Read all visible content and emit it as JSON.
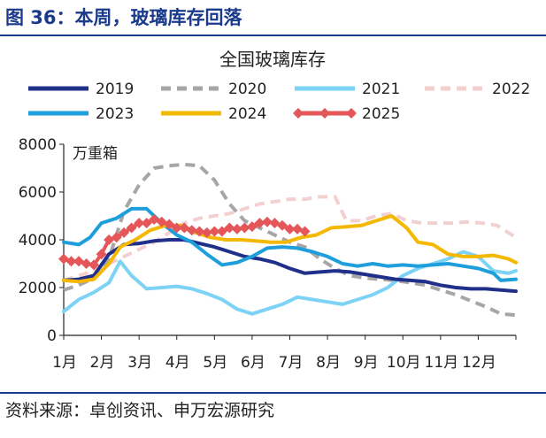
{
  "header": {
    "figure_title": "图 36：本周，玻璃库存回落"
  },
  "footer": {
    "source": "资料来源：卓创资讯、申万宏源研究"
  },
  "chart_data": {
    "type": "line",
    "title": "全国玻璃库存",
    "unit_label": "万重箱",
    "ylim": [
      0,
      8000
    ],
    "yticks": [
      0,
      2000,
      4000,
      6000,
      8000
    ],
    "xlim": [
      1,
      13
    ],
    "xticks": [
      "1月",
      "2月",
      "3月",
      "4月",
      "5月",
      "6月",
      "7月",
      "8月",
      "9月",
      "10月",
      "11月",
      "12月"
    ],
    "legend_position": "top",
    "grid": false,
    "series": [
      {
        "name": "2019",
        "color": "#1f2f8a",
        "style": "solid",
        "points": [
          [
            1,
            2300
          ],
          [
            1.4,
            2350
          ],
          [
            1.8,
            2500
          ],
          [
            2.2,
            3400
          ],
          [
            2.6,
            3800
          ],
          [
            3,
            3850
          ],
          [
            3.4,
            3950
          ],
          [
            3.8,
            4000
          ],
          [
            4.2,
            4000
          ],
          [
            4.6,
            3850
          ],
          [
            5,
            3700
          ],
          [
            5.4,
            3500
          ],
          [
            5.8,
            3300
          ],
          [
            6.2,
            3200
          ],
          [
            6.6,
            3050
          ],
          [
            7,
            2800
          ],
          [
            7.4,
            2600
          ],
          [
            7.8,
            2650
          ],
          [
            8.2,
            2700
          ],
          [
            8.6,
            2650
          ],
          [
            9,
            2550
          ],
          [
            9.4,
            2450
          ],
          [
            9.8,
            2350
          ],
          [
            10.2,
            2300
          ],
          [
            10.6,
            2250
          ],
          [
            11,
            2100
          ],
          [
            11.4,
            2000
          ],
          [
            11.8,
            1950
          ],
          [
            12.2,
            1950
          ],
          [
            12.6,
            1900
          ],
          [
            13,
            1850
          ]
        ]
      },
      {
        "name": "2020",
        "color": "#a6a6a6",
        "style": "dashed",
        "points": [
          [
            1,
            1900
          ],
          [
            1.4,
            2100
          ],
          [
            1.8,
            2400
          ],
          [
            2.2,
            3200
          ],
          [
            2.6,
            5200
          ],
          [
            3,
            6300
          ],
          [
            3.4,
            7000
          ],
          [
            3.8,
            7100
          ],
          [
            4.2,
            7150
          ],
          [
            4.6,
            7100
          ],
          [
            5,
            6500
          ],
          [
            5.4,
            5500
          ],
          [
            5.8,
            4800
          ],
          [
            6.2,
            4500
          ],
          [
            6.6,
            4200
          ],
          [
            7,
            3900
          ],
          [
            7.4,
            3700
          ],
          [
            7.8,
            3200
          ],
          [
            8.2,
            2800
          ],
          [
            8.6,
            2500
          ],
          [
            9,
            2400
          ],
          [
            9.4,
            2350
          ],
          [
            9.8,
            2300
          ],
          [
            10.2,
            2200
          ],
          [
            10.6,
            2100
          ],
          [
            11,
            1900
          ],
          [
            11.4,
            1700
          ],
          [
            11.8,
            1450
          ],
          [
            12.2,
            1200
          ],
          [
            12.6,
            900
          ],
          [
            13,
            850
          ]
        ]
      },
      {
        "name": "2021",
        "color": "#7dd3f5",
        "style": "solid",
        "points": [
          [
            1,
            1000
          ],
          [
            1.4,
            1500
          ],
          [
            1.8,
            1800
          ],
          [
            2.2,
            2200
          ],
          [
            2.5,
            3100
          ],
          [
            2.8,
            2500
          ],
          [
            3.2,
            1950
          ],
          [
            3.6,
            2000
          ],
          [
            4,
            2050
          ],
          [
            4.4,
            1950
          ],
          [
            4.8,
            1750
          ],
          [
            5.2,
            1500
          ],
          [
            5.6,
            1100
          ],
          [
            6,
            900
          ],
          [
            6.4,
            1100
          ],
          [
            6.8,
            1300
          ],
          [
            7.2,
            1600
          ],
          [
            7.6,
            1500
          ],
          [
            8,
            1400
          ],
          [
            8.4,
            1300
          ],
          [
            8.8,
            1500
          ],
          [
            9.2,
            1700
          ],
          [
            9.6,
            2000
          ],
          [
            10,
            2500
          ],
          [
            10.4,
            2800
          ],
          [
            10.8,
            3000
          ],
          [
            11.2,
            3200
          ],
          [
            11.6,
            3500
          ],
          [
            12,
            3300
          ],
          [
            12.4,
            2700
          ],
          [
            12.8,
            2600
          ],
          [
            13,
            2700
          ]
        ]
      },
      {
        "name": "2022",
        "color": "#f3d0d0",
        "style": "dashed",
        "points": [
          [
            1,
            2300
          ],
          [
            1.4,
            2500
          ],
          [
            1.8,
            2700
          ],
          [
            2.2,
            3000
          ],
          [
            2.6,
            3300
          ],
          [
            3,
            3600
          ],
          [
            3.4,
            3900
          ],
          [
            3.8,
            4300
          ],
          [
            4.2,
            4700
          ],
          [
            4.6,
            4900
          ],
          [
            5,
            5000
          ],
          [
            5.4,
            5100
          ],
          [
            5.8,
            5300
          ],
          [
            6.2,
            5500
          ],
          [
            6.6,
            5600
          ],
          [
            7,
            5700
          ],
          [
            7.4,
            5700
          ],
          [
            7.8,
            5800
          ],
          [
            8.2,
            5800
          ],
          [
            8.5,
            4800
          ],
          [
            8.9,
            4800
          ],
          [
            9.3,
            5000
          ],
          [
            9.7,
            5100
          ],
          [
            10.1,
            4800
          ],
          [
            10.5,
            4700
          ],
          [
            10.9,
            4700
          ],
          [
            11.3,
            4700
          ],
          [
            11.7,
            4750
          ],
          [
            12.1,
            4700
          ],
          [
            12.5,
            4600
          ],
          [
            13,
            4100
          ]
        ]
      },
      {
        "name": "2023",
        "color": "#1e9fdc",
        "style": "solid",
        "points": [
          [
            1,
            3900
          ],
          [
            1.4,
            3800
          ],
          [
            1.7,
            4100
          ],
          [
            2,
            4700
          ],
          [
            2.4,
            4900
          ],
          [
            2.8,
            5300
          ],
          [
            3.2,
            5300
          ],
          [
            3.6,
            4700
          ],
          [
            4,
            4200
          ],
          [
            4.4,
            3900
          ],
          [
            4.8,
            3400
          ],
          [
            5.2,
            2950
          ],
          [
            5.6,
            3050
          ],
          [
            6,
            3300
          ],
          [
            6.4,
            3650
          ],
          [
            6.8,
            3700
          ],
          [
            7.2,
            3650
          ],
          [
            7.6,
            3500
          ],
          [
            8,
            3300
          ],
          [
            8.4,
            3000
          ],
          [
            8.8,
            2900
          ],
          [
            9.2,
            3000
          ],
          [
            9.6,
            2900
          ],
          [
            10,
            2950
          ],
          [
            10.4,
            2900
          ],
          [
            10.8,
            2950
          ],
          [
            11.2,
            3000
          ],
          [
            11.6,
            2900
          ],
          [
            12,
            2800
          ],
          [
            12.4,
            2600
          ],
          [
            12.6,
            2300
          ],
          [
            13,
            2350
          ]
        ]
      },
      {
        "name": "2024",
        "color": "#f5b800",
        "style": "solid",
        "points": [
          [
            1,
            2300
          ],
          [
            1.4,
            2250
          ],
          [
            1.8,
            2350
          ],
          [
            2.2,
            3000
          ],
          [
            2.5,
            3700
          ],
          [
            2.9,
            4000
          ],
          [
            3.3,
            4400
          ],
          [
            3.7,
            4600
          ],
          [
            4.1,
            4600
          ],
          [
            4.5,
            4300
          ],
          [
            4.9,
            4100
          ],
          [
            5.3,
            4000
          ],
          [
            5.7,
            4000
          ],
          [
            6.1,
            3950
          ],
          [
            6.5,
            3900
          ],
          [
            6.9,
            3900
          ],
          [
            7.3,
            4100
          ],
          [
            7.7,
            4200
          ],
          [
            8.1,
            4500
          ],
          [
            8.5,
            4550
          ],
          [
            8.9,
            4600
          ],
          [
            9.3,
            4800
          ],
          [
            9.7,
            5000
          ],
          [
            10.1,
            4500
          ],
          [
            10.4,
            3900
          ],
          [
            10.8,
            3800
          ],
          [
            11.2,
            3400
          ],
          [
            11.6,
            3300
          ],
          [
            12,
            3300
          ],
          [
            12.4,
            3350
          ],
          [
            12.8,
            3200
          ],
          [
            13,
            3050
          ]
        ]
      },
      {
        "name": "2025",
        "color": "#e45658",
        "style": "solid-marker",
        "points": [
          [
            1,
            3200
          ],
          [
            1.2,
            3100
          ],
          [
            1.4,
            3100
          ],
          [
            1.6,
            3000
          ],
          [
            1.8,
            2950
          ],
          [
            2,
            3400
          ],
          [
            2.2,
            4000
          ],
          [
            2.4,
            4100
          ],
          [
            2.6,
            4300
          ],
          [
            2.8,
            4500
          ],
          [
            3,
            4700
          ],
          [
            3.2,
            4700
          ],
          [
            3.4,
            4850
          ],
          [
            3.6,
            4750
          ],
          [
            3.8,
            4650
          ],
          [
            4,
            4500
          ],
          [
            4.2,
            4500
          ],
          [
            4.4,
            4400
          ],
          [
            4.6,
            4350
          ],
          [
            4.8,
            4300
          ],
          [
            5,
            4350
          ],
          [
            5.2,
            4350
          ],
          [
            5.4,
            4500
          ],
          [
            5.6,
            4450
          ],
          [
            5.8,
            4500
          ],
          [
            6,
            4550
          ],
          [
            6.2,
            4700
          ],
          [
            6.4,
            4750
          ],
          [
            6.6,
            4700
          ],
          [
            6.8,
            4600
          ],
          [
            7,
            4450
          ],
          [
            7.2,
            4450
          ],
          [
            7.4,
            4350
          ]
        ]
      }
    ]
  }
}
